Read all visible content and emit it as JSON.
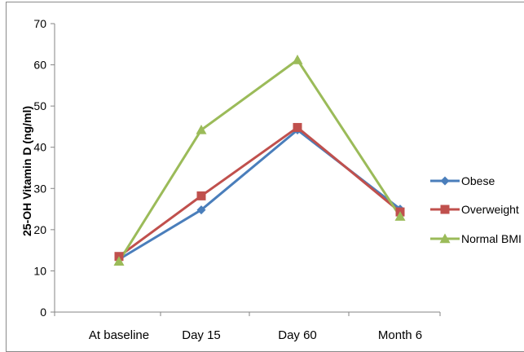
{
  "chart_data": {
    "type": "line",
    "title": "",
    "xlabel": "",
    "ylabel": "25-OH Vitamin D (ng/ml)",
    "categories": [
      "At baseline",
      "Day 15",
      "Day 60",
      "Month 6"
    ],
    "ylim": [
      0,
      70
    ],
    "yticks": [
      0,
      10,
      20,
      30,
      40,
      50,
      60,
      70
    ],
    "grid": false,
    "legend_position": "right",
    "series": [
      {
        "name": "Obese",
        "values": [
          12.8,
          24.8,
          44.2,
          25.0
        ],
        "color": "#4a7ebb",
        "marker": "diamond"
      },
      {
        "name": "Overweight",
        "values": [
          13.5,
          28.2,
          44.8,
          24.3
        ],
        "color": "#c0504d",
        "marker": "square"
      },
      {
        "name": "Normal BMI",
        "values": [
          12.3,
          44.2,
          61.2,
          23.2
        ],
        "color": "#9bbb59",
        "marker": "triangle"
      }
    ]
  }
}
